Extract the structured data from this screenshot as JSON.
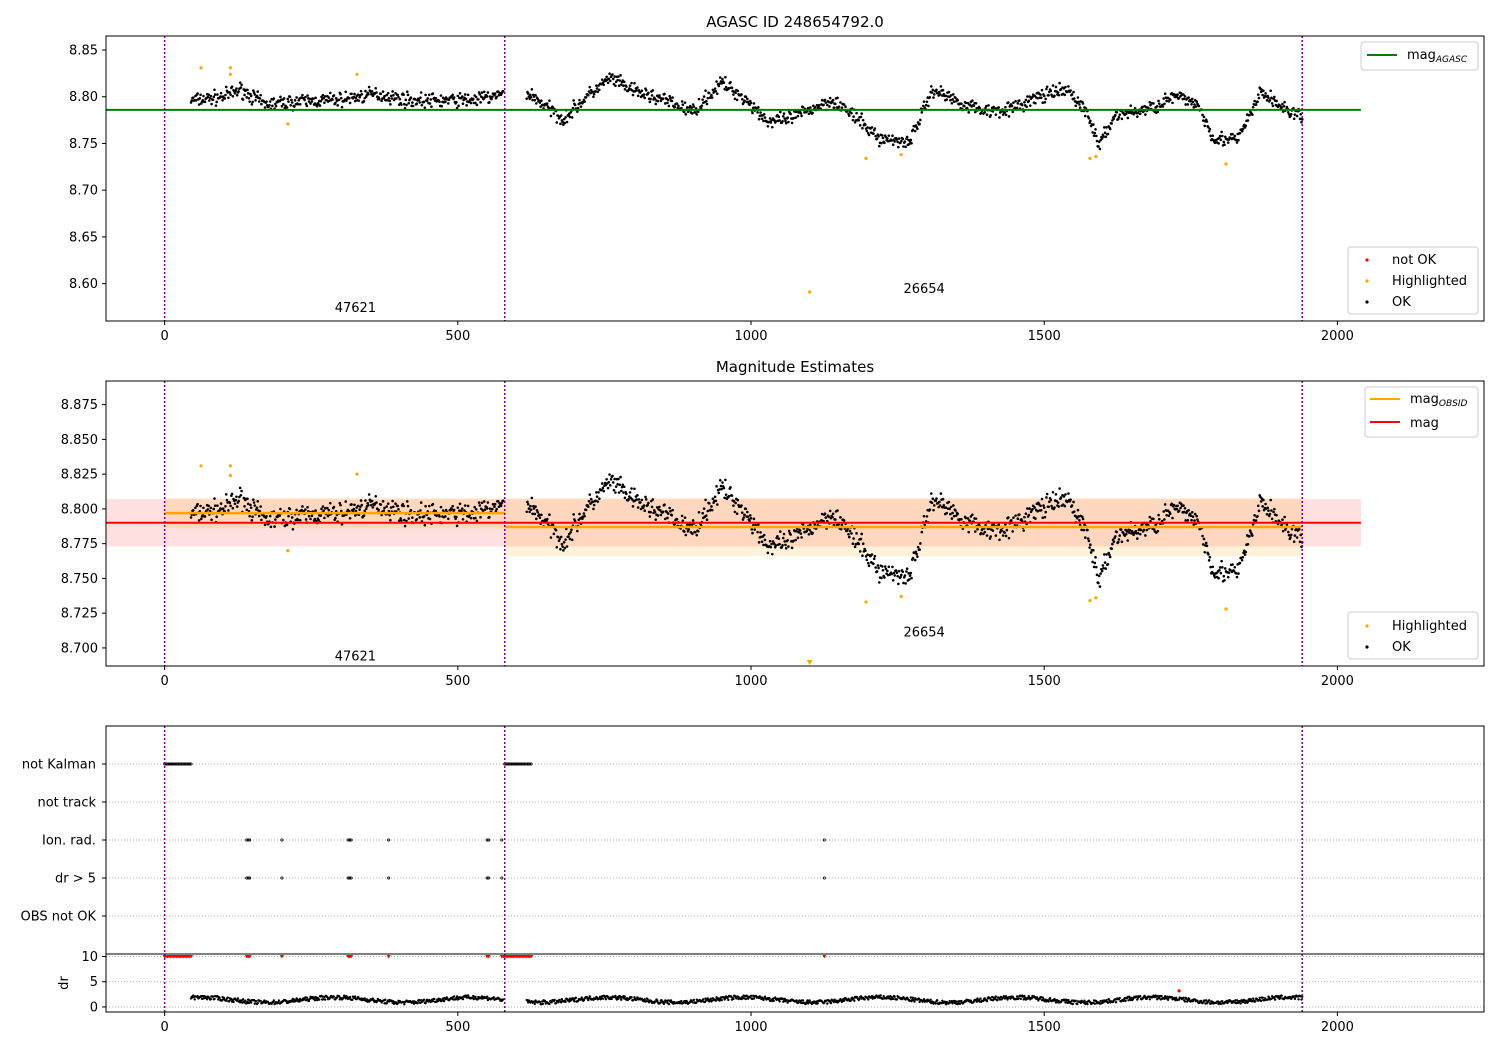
{
  "chart_data": [
    {
      "type": "scatter",
      "title": "AGASC ID 248654792.0",
      "xlim": [
        -100,
        2250
      ],
      "ylim": [
        8.56,
        8.865
      ],
      "x_ticks": [
        0,
        500,
        1000,
        1500,
        2000
      ],
      "y_ticks": [
        8.6,
        8.65,
        8.7,
        8.75,
        8.8,
        8.85
      ],
      "y_tick_labels": [
        "8.60",
        "8.65",
        "8.70",
        "8.75",
        "8.80",
        "8.85"
      ],
      "obsid_boundaries": [
        0,
        580,
        1940
      ],
      "obsid_labels": [
        {
          "text": "47621",
          "x": 290,
          "y": 8.574
        },
        {
          "text": "26654",
          "x": 1260,
          "y": 8.594
        }
      ],
      "lines": [
        {
          "name": "mag",
          "subscript": "AGASC",
          "color": "#008000",
          "y": 8.786,
          "x": [
            -100,
            2040
          ]
        }
      ],
      "series": [
        {
          "name": "not OK",
          "color": "#ff0000",
          "points": []
        },
        {
          "name": "Highlighted",
          "color": "#ffa500",
          "points": [
            [
              62,
              8.831
            ],
            [
              112,
              8.831
            ],
            [
              112,
              8.824
            ],
            [
              210,
              8.771
            ],
            [
              328,
              8.824
            ],
            [
              1196,
              8.734
            ],
            [
              1256,
              8.738
            ],
            [
              1578,
              8.734
            ],
            [
              1588,
              8.736
            ],
            [
              1810,
              8.728
            ],
            [
              1100,
              8.591
            ]
          ]
        },
        {
          "name": "OK",
          "color": "#000000"
        }
      ],
      "legend_lines_position": "top-right",
      "legend_points_position": "bottom-right"
    },
    {
      "type": "scatter",
      "title": "Magnitude Estimates",
      "xlim": [
        -100,
        2250
      ],
      "ylim": [
        8.687,
        8.892
      ],
      "x_ticks": [
        0,
        500,
        1000,
        1500,
        2000
      ],
      "y_ticks": [
        8.7,
        8.725,
        8.75,
        8.775,
        8.8,
        8.825,
        8.85,
        8.875
      ],
      "y_tick_labels": [
        "8.700",
        "8.725",
        "8.750",
        "8.775",
        "8.800",
        "8.825",
        "8.850",
        "8.875"
      ],
      "obsid_boundaries": [
        0,
        580,
        1940
      ],
      "obsid_labels": [
        {
          "text": "47621",
          "x": 290,
          "y": 8.694
        },
        {
          "text": "26654",
          "x": 1260,
          "y": 8.711
        }
      ],
      "lines": [
        {
          "name": "mag",
          "subscript": "OBSID",
          "color": "#ffa500",
          "segments": [
            {
              "x": [
                0,
                580
              ],
              "y": 8.797
            },
            {
              "x": [
                580,
                1940
              ],
              "y": 8.787
            }
          ]
        },
        {
          "name": "mag",
          "subscript": "",
          "color": "#ff0000",
          "x": [
            -100,
            2040
          ],
          "y": 8.79
        }
      ],
      "bands": [
        {
          "color": "#ff0000",
          "opacity": 0.12,
          "x": [
            -100,
            2040
          ],
          "y": [
            8.773,
            8.807
          ]
        },
        {
          "color": "#ffa500",
          "opacity": 0.15,
          "x": [
            0,
            580
          ],
          "y": [
            8.786,
            8.808
          ]
        },
        {
          "color": "#ffa500",
          "opacity": 0.15,
          "x": [
            580,
            1940
          ],
          "y": [
            8.766,
            8.808
          ]
        }
      ],
      "series": [
        {
          "name": "Highlighted",
          "color": "#ffa500",
          "points": [
            [
              62,
              8.831
            ],
            [
              112,
              8.831
            ],
            [
              112,
              8.824
            ],
            [
              210,
              8.77
            ],
            [
              328,
              8.825
            ],
            [
              1196,
              8.733
            ],
            [
              1256,
              8.737
            ],
            [
              1578,
              8.734
            ],
            [
              1588,
              8.736
            ],
            [
              1810,
              8.728
            ]
          ]
        },
        {
          "name": "OK",
          "color": "#000000"
        }
      ],
      "legend_lines_position": "top-right",
      "legend_points_position": "bottom-right"
    },
    {
      "type": "scatter",
      "xlim": [
        -100,
        2250
      ],
      "categories": [
        "not Kalman",
        "not track",
        "Ion. rad.",
        "dr > 5",
        "OBS not OK"
      ],
      "x_ticks": [
        0,
        500,
        1000,
        1500,
        2000
      ],
      "obsid_boundaries": [
        0,
        580,
        1940
      ],
      "flag_ranges": {
        "not Kalman": [
          [
            0,
            45
          ],
          [
            580,
            625
          ]
        ],
        "not track": [],
        "Ion. rad.": [
          [
            140,
            145
          ],
          [
            200,
            200
          ],
          [
            313,
            318
          ],
          [
            382,
            382
          ],
          [
            550,
            553
          ],
          [
            575,
            575
          ],
          [
            1125,
            1125
          ]
        ],
        "dr > 5": [
          [
            140,
            145
          ],
          [
            200,
            200
          ],
          [
            313,
            318
          ],
          [
            382,
            382
          ],
          [
            550,
            553
          ],
          [
            575,
            575
          ],
          [
            1125,
            1125
          ]
        ],
        "OBS not OK": []
      }
    },
    {
      "type": "scatter",
      "xlim": [
        -100,
        2250
      ],
      "ylim": [
        -1,
        10.5
      ],
      "ylabel": "dr",
      "x_ticks": [
        0,
        500,
        1000,
        1500,
        2000
      ],
      "y_ticks": [
        0,
        5,
        10
      ],
      "y_tick_labels": [
        "0",
        "5",
        "10"
      ],
      "obsid_boundaries": [
        0,
        580,
        1940
      ],
      "clipped_value": 10,
      "clipped_ranges": [
        [
          0,
          45
        ],
        [
          140,
          145
        ],
        [
          200,
          200
        ],
        [
          313,
          318
        ],
        [
          382,
          382
        ],
        [
          550,
          553
        ],
        [
          575,
          625
        ],
        [
          1125,
          1125
        ]
      ],
      "red_points": [
        [
          1730,
          3.2
        ]
      ]
    }
  ]
}
